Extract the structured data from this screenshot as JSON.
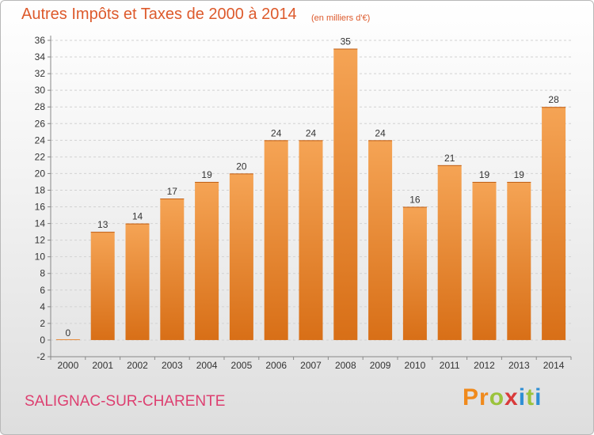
{
  "header": {
    "title": "Autres Impôts et Taxes de 2000 à 2014",
    "unit_note": "(en milliers d'€)"
  },
  "footer": {
    "commune": "SALIGNAC-SUR-CHARENTE",
    "logo": {
      "letters": [
        "P",
        "r",
        "o",
        "x",
        "i",
        "t",
        "i"
      ],
      "colors": [
        "#f08a1c",
        "#f08a1c",
        "#9bc33c",
        "#d93a3a",
        "#2f8fd4",
        "#9bc33c",
        "#2f8fd4"
      ]
    }
  },
  "chart_data": {
    "type": "bar",
    "title": "Autres Impôts et Taxes de 2000 à 2014",
    "subtitle": "(en milliers d'€)",
    "categories": [
      "2000",
      "2001",
      "2002",
      "2003",
      "2004",
      "2005",
      "2006",
      "2007",
      "2008",
      "2009",
      "2010",
      "2011",
      "2012",
      "2013",
      "2014"
    ],
    "values": [
      0,
      13,
      14,
      17,
      19,
      20,
      24,
      24,
      35,
      24,
      16,
      21,
      19,
      19,
      28
    ],
    "ylim": [
      -2,
      36
    ],
    "yticks": [
      "-2",
      "0",
      "2",
      "4",
      "6",
      "8",
      "10",
      "12",
      "14",
      "16",
      "18",
      "20",
      "22",
      "24",
      "26",
      "28",
      "30",
      "32",
      "34",
      "36"
    ],
    "grid": true,
    "legend": "none",
    "bar_colors": {
      "light": "#f5a455",
      "dark": "#d86f17"
    },
    "xlabel": "",
    "ylabel": ""
  }
}
